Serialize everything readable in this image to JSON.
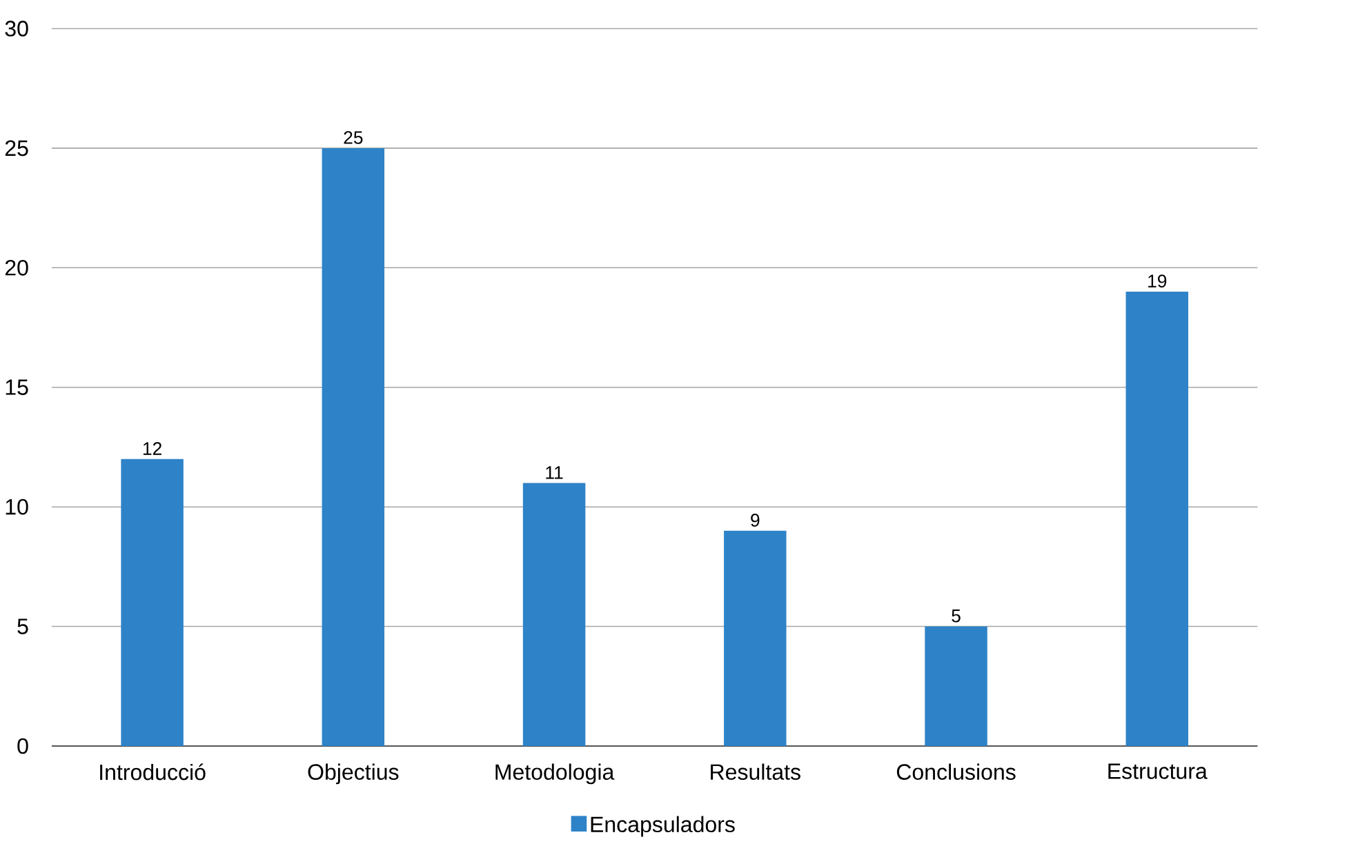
{
  "chart_data": {
    "type": "bar",
    "categories": [
      "Introducció",
      "Objectius",
      "Metodologia",
      "Resultats",
      "Conclusions",
      "Estructura"
    ],
    "series": [
      {
        "name": "Encapsuladors",
        "color": "#2e83c8",
        "values": [
          12,
          25,
          11,
          9,
          5,
          19
        ]
      }
    ],
    "ylim": [
      0,
      30
    ],
    "yticks": [
      0,
      5,
      10,
      15,
      20,
      25,
      30
    ],
    "grid": "y",
    "legend": "bottom",
    "data_labels": true
  }
}
